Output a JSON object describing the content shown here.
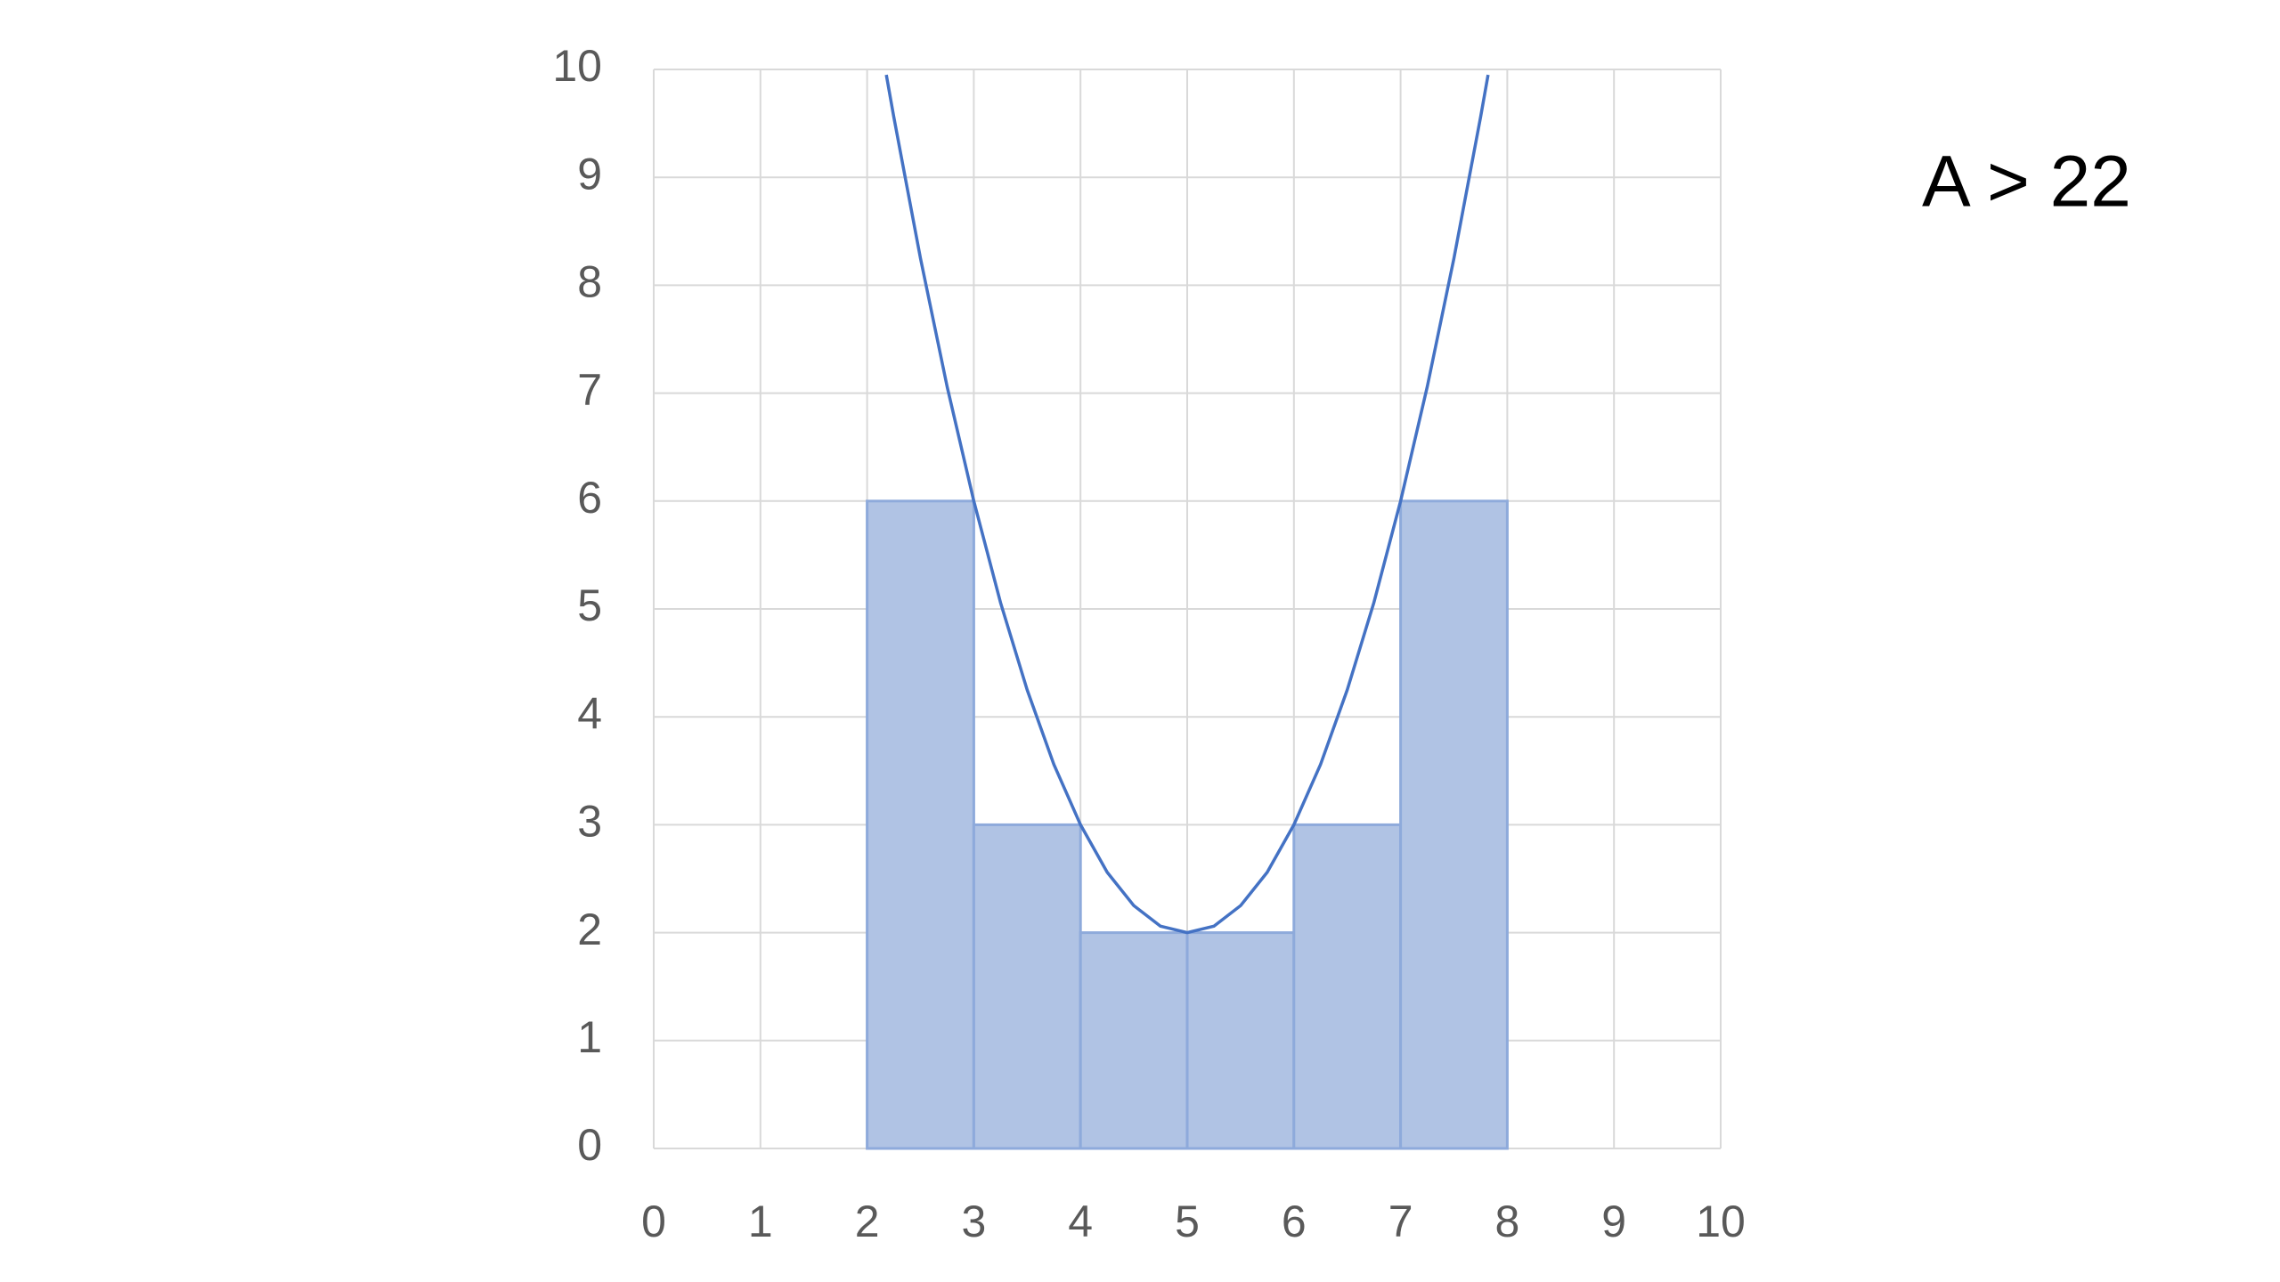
{
  "chart_data": {
    "type": "histogram",
    "annotation": "A > 22",
    "bins": [
      2,
      3,
      4,
      5,
      6,
      7,
      8
    ],
    "counts": [
      6,
      3,
      2,
      2,
      3,
      6
    ],
    "color": "#b0c3e4",
    "curve": {
      "color": "#4472c4",
      "x": [
        2.18,
        2.25,
        2.5,
        2.75,
        3,
        3.25,
        3.5,
        3.75,
        4,
        4.25,
        4.5,
        4.75,
        5,
        5.25,
        5.5,
        5.75,
        6,
        6.25,
        6.5,
        6.75,
        7,
        7.25,
        7.5,
        7.75,
        7.82
      ],
      "values": [
        9.95,
        9.56,
        8.25,
        7.06,
        6,
        5.06,
        4.25,
        3.56,
        3,
        2.56,
        2.25,
        2.06,
        2,
        2.06,
        2.25,
        2.56,
        3,
        3.56,
        4.25,
        5.06,
        6,
        7.06,
        8.25,
        9.56,
        9.95
      ]
    },
    "xlim": [
      0,
      10
    ],
    "ylim": [
      0,
      10
    ],
    "xticks": [
      0,
      1,
      2,
      3,
      4,
      5,
      6,
      7,
      8,
      9,
      10
    ],
    "yticks": [
      0,
      1,
      2,
      3,
      4,
      5,
      6,
      7,
      8,
      9,
      10
    ],
    "grid": true
  }
}
